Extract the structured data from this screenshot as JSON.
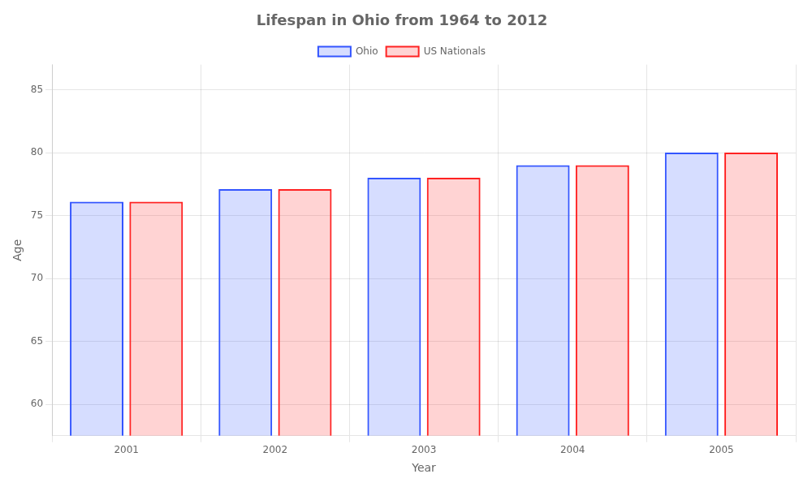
{
  "chart_data": {
    "type": "bar",
    "title": "Lifespan in Ohio from 1964 to 2012",
    "xlabel": "Year",
    "ylabel": "Age",
    "categories": [
      "2001",
      "2002",
      "2003",
      "2004",
      "2005"
    ],
    "series": [
      {
        "name": "Ohio",
        "color": "#3355ff",
        "values": [
          76.1,
          77.1,
          78.0,
          79.0,
          80.0
        ]
      },
      {
        "name": "US Nationals",
        "color": "#ff2222",
        "values": [
          76.1,
          77.1,
          78.0,
          79.0,
          80.0
        ]
      }
    ],
    "ylim": [
      57.5,
      87
    ],
    "yticks": [
      60,
      65,
      70,
      75,
      80,
      85
    ],
    "grid": true,
    "legend": "top"
  }
}
